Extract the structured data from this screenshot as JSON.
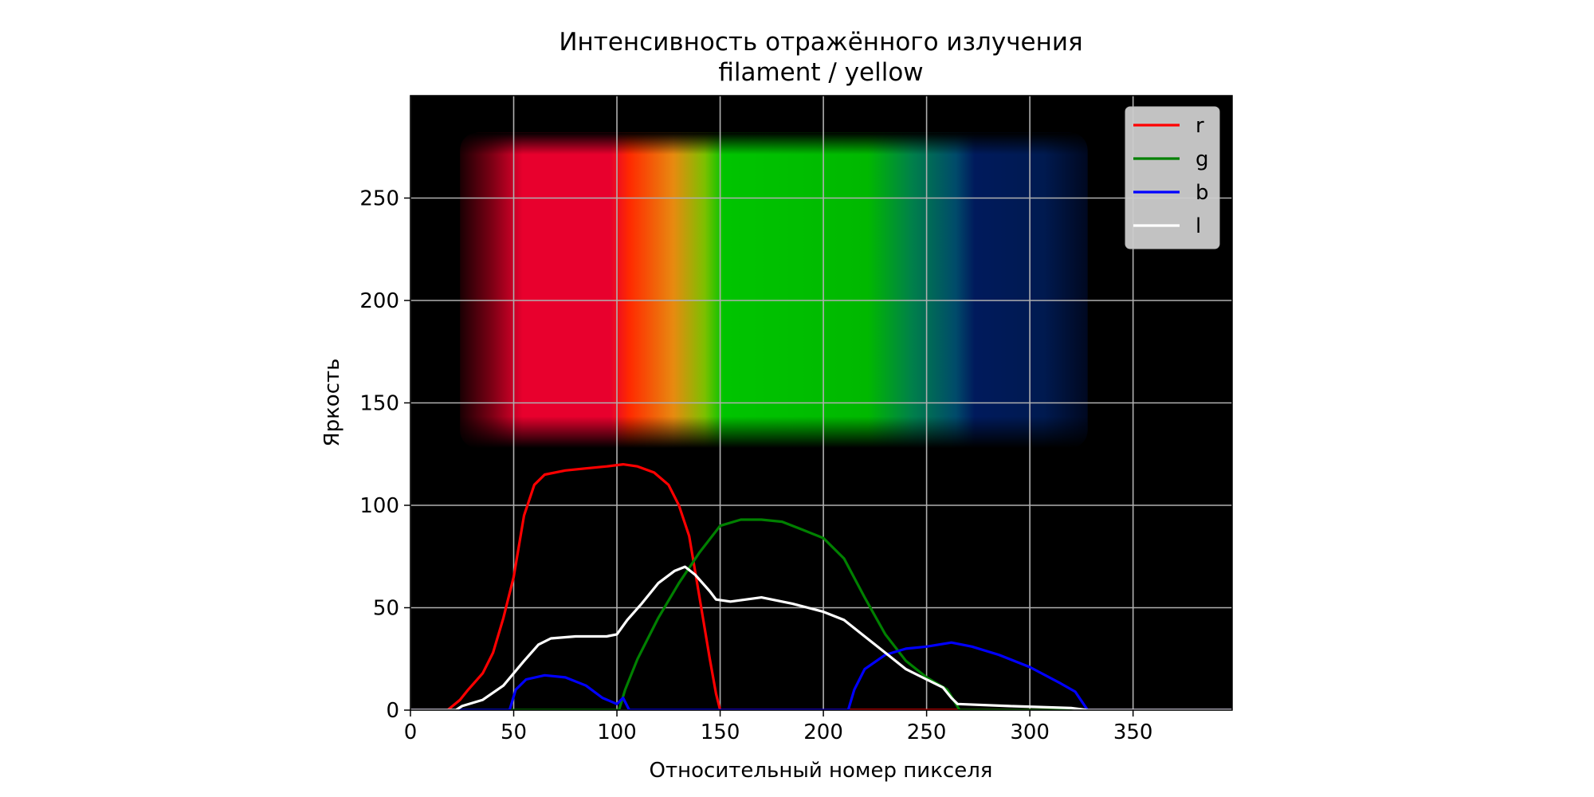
{
  "chart_data": {
    "type": "line",
    "title": "Интенсивность отражённого излучения",
    "subtitle": "filament / yellow",
    "xlabel": "Относительный номер пикселя",
    "ylabel": "Яркость",
    "xlim": [
      0,
      398
    ],
    "ylim": [
      0,
      300
    ],
    "xticks": [
      0,
      50,
      100,
      150,
      200,
      250,
      300,
      350
    ],
    "yticks": [
      0,
      50,
      100,
      150,
      200,
      250
    ],
    "grid": true,
    "legend_position": "top-right",
    "background": "spectrum image of the filament: red, orange, green and blue bands spanning x≈25–325, y≈130–280 on black",
    "colors": {
      "r": "#ff0000",
      "g": "#008000",
      "b": "#0000ff",
      "l": "#ffffff",
      "plot_bg": "#000000",
      "grid": "#b0b0b0"
    },
    "series": [
      {
        "name": "r",
        "color": "#ff0000",
        "points": [
          [
            0,
            0
          ],
          [
            18,
            0
          ],
          [
            24,
            5
          ],
          [
            28,
            10
          ],
          [
            35,
            18
          ],
          [
            40,
            28
          ],
          [
            45,
            45
          ],
          [
            50,
            65
          ],
          [
            55,
            95
          ],
          [
            60,
            110
          ],
          [
            65,
            115
          ],
          [
            75,
            117
          ],
          [
            85,
            118
          ],
          [
            95,
            119
          ],
          [
            103,
            120
          ],
          [
            110,
            119
          ],
          [
            118,
            116
          ],
          [
            125,
            110
          ],
          [
            130,
            100
          ],
          [
            135,
            85
          ],
          [
            140,
            55
          ],
          [
            145,
            25
          ],
          [
            148,
            8
          ],
          [
            150,
            0
          ],
          [
            398,
            0
          ]
        ]
      },
      {
        "name": "g",
        "color": "#008000",
        "points": [
          [
            0,
            0
          ],
          [
            101,
            0
          ],
          [
            104,
            10
          ],
          [
            110,
            25
          ],
          [
            120,
            45
          ],
          [
            130,
            62
          ],
          [
            140,
            77
          ],
          [
            150,
            90
          ],
          [
            160,
            93
          ],
          [
            170,
            93
          ],
          [
            180,
            92
          ],
          [
            190,
            88
          ],
          [
            200,
            84
          ],
          [
            210,
            74
          ],
          [
            220,
            55
          ],
          [
            230,
            37
          ],
          [
            240,
            24
          ],
          [
            250,
            16
          ],
          [
            260,
            10
          ],
          [
            266,
            0
          ],
          [
            398,
            0
          ]
        ]
      },
      {
        "name": "b",
        "color": "#0000ff",
        "points": [
          [
            0,
            0
          ],
          [
            48,
            0
          ],
          [
            51,
            10
          ],
          [
            56,
            15
          ],
          [
            65,
            17
          ],
          [
            75,
            16
          ],
          [
            85,
            12
          ],
          [
            93,
            6
          ],
          [
            100,
            3
          ],
          [
            103,
            6
          ],
          [
            106,
            0
          ],
          [
            212,
            0
          ],
          [
            215,
            10
          ],
          [
            220,
            20
          ],
          [
            230,
            27
          ],
          [
            240,
            30
          ],
          [
            250,
            31
          ],
          [
            262,
            33
          ],
          [
            272,
            31
          ],
          [
            285,
            27
          ],
          [
            300,
            21
          ],
          [
            315,
            13
          ],
          [
            322,
            9
          ],
          [
            326,
            3
          ],
          [
            328,
            0
          ],
          [
            398,
            0
          ]
        ]
      },
      {
        "name": "l",
        "color": "#ffffff",
        "points": [
          [
            0,
            0
          ],
          [
            22,
            0
          ],
          [
            25,
            2
          ],
          [
            35,
            5
          ],
          [
            45,
            12
          ],
          [
            55,
            24
          ],
          [
            62,
            32
          ],
          [
            68,
            35
          ],
          [
            80,
            36
          ],
          [
            95,
            36
          ],
          [
            100,
            37
          ],
          [
            105,
            44
          ],
          [
            112,
            52
          ],
          [
            120,
            62
          ],
          [
            128,
            68
          ],
          [
            133,
            70
          ],
          [
            138,
            66
          ],
          [
            145,
            58
          ],
          [
            148,
            54
          ],
          [
            155,
            53
          ],
          [
            170,
            55
          ],
          [
            185,
            52
          ],
          [
            200,
            48
          ],
          [
            210,
            44
          ],
          [
            220,
            36
          ],
          [
            230,
            28
          ],
          [
            240,
            20
          ],
          [
            250,
            15
          ],
          [
            258,
            11
          ],
          [
            262,
            6
          ],
          [
            265,
            3
          ],
          [
            290,
            2
          ],
          [
            320,
            1
          ],
          [
            328,
            0
          ],
          [
            398,
            0
          ]
        ]
      }
    ]
  }
}
